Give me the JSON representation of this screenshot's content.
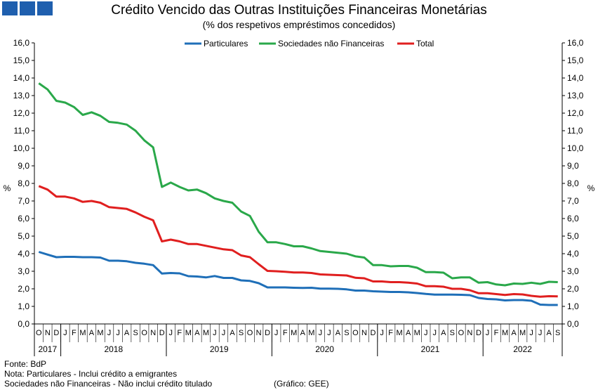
{
  "header": {
    "title": "Crédito Vencido das Outras Instituições Financeiras Monetárias",
    "subtitle": "(% dos respetivos empréstimos concedidos)",
    "logo_color": "#1f5fae"
  },
  "footer": {
    "source": "Fonte: BdP",
    "note1": "Nota: Particulares - Inclui crédito a emigrantes",
    "note2": "Sociedades não Financeiras - Não inclui crédito titulado",
    "credit": "(Gráfico: GEE)"
  },
  "chart_data": {
    "type": "line",
    "title": "Crédito Vencido das Outras Instituições Financeiras Monetárias",
    "subtitle": "(% dos respetivos empréstimos concedidos)",
    "ylabel": "%",
    "ylabel_right": "%",
    "ylim": [
      0,
      16
    ],
    "ytick_step": 1,
    "ytick_labels": [
      "0,0",
      "1,0",
      "2,0",
      "3,0",
      "4,0",
      "5,0",
      "6,0",
      "7,0",
      "8,0",
      "9,0",
      "10,0",
      "11,0",
      "12,0",
      "13,0",
      "14,0",
      "15,0",
      "16,0"
    ],
    "grid": false,
    "legend_position": "top-center",
    "month_labels": [
      "O",
      "N",
      "D",
      "J",
      "F",
      "M",
      "A",
      "M",
      "J",
      "J",
      "A",
      "S",
      "O",
      "N",
      "D",
      "J",
      "F",
      "M",
      "A",
      "M",
      "J",
      "J",
      "A",
      "S",
      "O",
      "N",
      "D",
      "J",
      "F",
      "M",
      "A",
      "M",
      "J",
      "J",
      "A",
      "S",
      "O",
      "N",
      "D",
      "J",
      "F",
      "M",
      "A",
      "M",
      "J",
      "J",
      "A",
      "S",
      "O",
      "N",
      "D",
      "J",
      "F",
      "M",
      "A",
      "M",
      "J",
      "J",
      "A",
      "S"
    ],
    "years": [
      {
        "label": "2017",
        "start": 0,
        "count": 3
      },
      {
        "label": "2018",
        "start": 3,
        "count": 12
      },
      {
        "label": "2019",
        "start": 15,
        "count": 12
      },
      {
        "label": "2020",
        "start": 27,
        "count": 12
      },
      {
        "label": "2021",
        "start": 39,
        "count": 12
      },
      {
        "label": "2022",
        "start": 51,
        "count": 9
      }
    ],
    "series": [
      {
        "name": "Particulares",
        "color": "#1f6fb8",
        "values": [
          4.1,
          3.95,
          3.8,
          3.82,
          3.82,
          3.8,
          3.8,
          3.78,
          3.6,
          3.6,
          3.57,
          3.48,
          3.43,
          3.35,
          2.87,
          2.9,
          2.88,
          2.72,
          2.7,
          2.65,
          2.73,
          2.62,
          2.62,
          2.48,
          2.45,
          2.32,
          2.08,
          2.08,
          2.08,
          2.06,
          2.05,
          2.06,
          2.01,
          2.01,
          2.0,
          1.97,
          1.9,
          1.9,
          1.86,
          1.84,
          1.82,
          1.82,
          1.8,
          1.76,
          1.71,
          1.67,
          1.67,
          1.67,
          1.66,
          1.64,
          1.48,
          1.42,
          1.4,
          1.34,
          1.36,
          1.36,
          1.32,
          1.1,
          1.08,
          1.08
        ]
      },
      {
        "name": "Sociedades não Financeiras",
        "color": "#2aa84a",
        "values": [
          13.7,
          13.35,
          12.7,
          12.6,
          12.35,
          11.9,
          12.05,
          11.85,
          11.5,
          11.45,
          11.35,
          11.0,
          10.45,
          10.05,
          7.8,
          8.05,
          7.8,
          7.6,
          7.65,
          7.45,
          7.15,
          7.0,
          6.9,
          6.4,
          6.15,
          5.25,
          4.65,
          4.65,
          4.55,
          4.42,
          4.42,
          4.3,
          4.15,
          4.1,
          4.05,
          4.0,
          3.85,
          3.78,
          3.35,
          3.35,
          3.28,
          3.3,
          3.3,
          3.2,
          2.95,
          2.95,
          2.92,
          2.6,
          2.65,
          2.65,
          2.35,
          2.38,
          2.25,
          2.2,
          2.3,
          2.28,
          2.35,
          2.28,
          2.4,
          2.38
        ]
      },
      {
        "name": "Total",
        "color": "#e01f1f",
        "values": [
          7.85,
          7.65,
          7.25,
          7.25,
          7.15,
          6.95,
          7.0,
          6.9,
          6.65,
          6.6,
          6.55,
          6.35,
          6.1,
          5.9,
          4.7,
          4.8,
          4.7,
          4.55,
          4.55,
          4.45,
          4.35,
          4.25,
          4.2,
          3.9,
          3.8,
          3.4,
          3.02,
          3.0,
          2.97,
          2.93,
          2.93,
          2.9,
          2.82,
          2.8,
          2.78,
          2.76,
          2.63,
          2.6,
          2.42,
          2.42,
          2.38,
          2.38,
          2.35,
          2.3,
          2.15,
          2.15,
          2.12,
          2.0,
          2.0,
          1.92,
          1.75,
          1.75,
          1.7,
          1.65,
          1.7,
          1.68,
          1.6,
          1.55,
          1.58,
          1.57
        ]
      }
    ]
  }
}
